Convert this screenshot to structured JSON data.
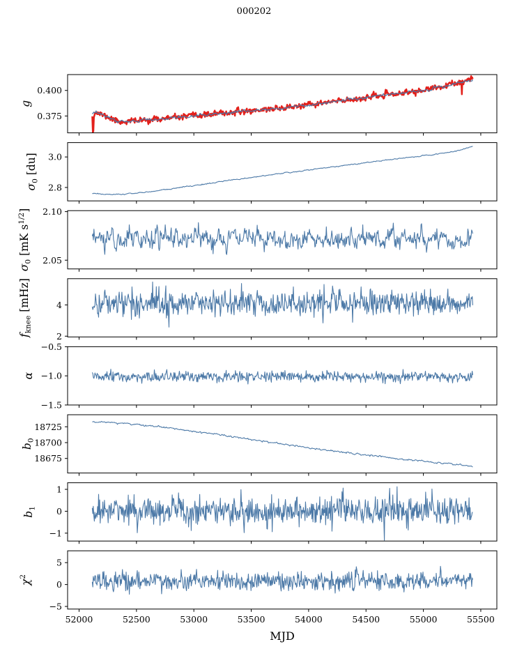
{
  "chart_data": {
    "type": "multi-panel-line",
    "title": "000202",
    "line_color": "#4c79a7",
    "overlay_color": "#e3201b",
    "x_axis": {
      "label": "MJD",
      "lim": [
        51900,
        55640
      ],
      "ticks": [
        52000,
        52500,
        53000,
        53500,
        54000,
        54500,
        55000,
        55500
      ],
      "tick_labels": [
        "52000",
        "52500",
        "53000",
        "53500",
        "54000",
        "54500",
        "55000",
        "55500"
      ]
    },
    "panels": [
      {
        "id": "g",
        "type": "line",
        "ylabel_text": "g",
        "ylabel_segments": [
          {
            "t": "g",
            "it": 1
          }
        ],
        "ylim": [
          0.3585,
          0.4155
        ],
        "yticks": [
          {
            "v": 0.4,
            "l": "0.400"
          },
          {
            "v": 0.375,
            "l": "0.375"
          }
        ],
        "series": [
          {
            "name": "gain-data-red",
            "color": "#e3201b",
            "width": 2.4,
            "n": 700,
            "x_range": [
              52115,
              55430
            ],
            "control": {
              "x": [
                52115,
                52150,
                52350,
                52700,
                53100,
                53500,
                53900,
                54300,
                54700,
                55000,
                55250,
                55430
              ],
              "v": [
                0.3762,
                0.3786,
                0.3692,
                0.372,
                0.3761,
                0.3802,
                0.3843,
                0.3902,
                0.3958,
                0.4,
                0.4058,
                0.4108
              ]
            },
            "noise_sd": 0.0014,
            "ar": 0.25,
            "seed": 11,
            "spikes": [
              {
                "x": 52119,
                "v": 0.3592
              },
              {
                "x": 52123,
                "v": 0.36
              },
              {
                "x": 55333,
                "v": 0.3962
              }
            ]
          },
          {
            "name": "gain-smoothed-blue",
            "color": "#4c79a7",
            "width": 1.2,
            "n": 500,
            "x_range": [
              52115,
              55430
            ],
            "control": {
              "x": [
                52115,
                52150,
                52350,
                52700,
                53100,
                53500,
                53900,
                54300,
                54700,
                55000,
                55250,
                55430
              ],
              "v": [
                0.3762,
                0.3786,
                0.3692,
                0.372,
                0.3761,
                0.3802,
                0.3843,
                0.3902,
                0.3958,
                0.4,
                0.4058,
                0.4108
              ]
            },
            "noise_sd": 0.0007,
            "ar": 0.5,
            "seed": 12
          }
        ]
      },
      {
        "id": "sigma0-du",
        "type": "line",
        "ylabel_text": "sigma_0 [du]",
        "ylabel_segments": [
          {
            "t": "σ",
            "it": 1
          },
          {
            "t": "0",
            "s": "sub"
          },
          {
            "t": " [du]"
          }
        ],
        "ylim": [
          2.712,
          3.094
        ],
        "yticks": [
          {
            "v": 3.0,
            "l": "3.0"
          },
          {
            "v": 2.8,
            "l": "2.8"
          }
        ],
        "series": [
          {
            "name": "sigma0-du-line",
            "color": "#4c79a7",
            "width": 1.1,
            "n": 500,
            "x_range": [
              52115,
              55430
            ],
            "control": {
              "x": [
                52115,
                52300,
                52600,
                53000,
                53400,
                53800,
                54200,
                54600,
                55000,
                55250,
                55430
              ],
              "v": [
                2.763,
                2.751,
                2.77,
                2.812,
                2.856,
                2.896,
                2.934,
                2.972,
                3.008,
                3.032,
                3.068
              ]
            },
            "noise_sd": 0.002,
            "ar": 0.5,
            "seed": 21
          }
        ]
      },
      {
        "id": "sigma0-mks",
        "type": "line",
        "ylabel_text": "sigma_0 [mK s^1/2]",
        "ylabel_segments": [
          {
            "t": "σ",
            "it": 1
          },
          {
            "t": "0",
            "s": "sub"
          },
          {
            "t": " [mK s"
          },
          {
            "t": "1/2",
            "s": "sup"
          },
          {
            "t": "]"
          }
        ],
        "ylim": [
          2.041,
          2.101
        ],
        "yticks": [
          {
            "v": 2.1,
            "l": "2.10"
          },
          {
            "v": 2.05,
            "l": "2.05"
          }
        ],
        "series": [
          {
            "name": "sigma0-mks-line",
            "color": "#4c79a7",
            "width": 1.1,
            "n": 700,
            "x_range": [
              52115,
              55430
            ],
            "mean": 2.0725,
            "noise_sd": 0.0055,
            "ar": 0.45,
            "clamp": [
              2.052,
              2.0965
            ],
            "seed": 31
          }
        ]
      },
      {
        "id": "fknee",
        "type": "line",
        "ylabel_text": "f_knee [mHz]",
        "ylabel_segments": [
          {
            "t": "f",
            "it": 1
          },
          {
            "t": "knee",
            "s": "sub"
          },
          {
            "t": " [mHz]"
          }
        ],
        "ylim": [
          1.95,
          5.68
        ],
        "yticks": [
          {
            "v": 4,
            "l": "4"
          },
          {
            "v": 2,
            "l": "2"
          }
        ],
        "series": [
          {
            "name": "fknee-line",
            "color": "#4c79a7",
            "width": 1.1,
            "n": 720,
            "x_range": [
              52115,
              55430
            ],
            "mean": 4.13,
            "noise_sd": 0.43,
            "ar": 0.15,
            "clamp": [
              2.45,
              5.62
            ],
            "seed": 41
          }
        ]
      },
      {
        "id": "alpha",
        "type": "line",
        "ylabel_text": "alpha",
        "ylabel_segments": [
          {
            "t": "α",
            "it": 1
          }
        ],
        "ylim": [
          -1.5,
          -0.5
        ],
        "yticks": [
          {
            "v": -0.5,
            "l": "−0.5"
          },
          {
            "v": -1.0,
            "l": "−1.0"
          },
          {
            "v": -1.5,
            "l": "−1.5"
          }
        ],
        "series": [
          {
            "name": "alpha-line",
            "color": "#4c79a7",
            "width": 1.1,
            "n": 700,
            "x_range": [
              52115,
              55430
            ],
            "mean": -1.02,
            "noise_sd": 0.045,
            "ar": 0.1,
            "clamp": [
              -1.21,
              -0.8
            ],
            "seed": 51
          }
        ]
      },
      {
        "id": "b0",
        "type": "line",
        "ylabel_text": "b_0",
        "ylabel_segments": [
          {
            "t": "b",
            "it": 1
          },
          {
            "t": "0",
            "s": "sub"
          }
        ],
        "ylim": [
          18652,
          18744
        ],
        "yticks": [
          {
            "v": 18725,
            "l": "18725"
          },
          {
            "v": 18700,
            "l": "18700"
          },
          {
            "v": 18675,
            "l": "18675"
          }
        ],
        "series": [
          {
            "name": "b0-line",
            "color": "#4c79a7",
            "width": 1.1,
            "n": 500,
            "x_range": [
              52115,
              55430
            ],
            "control": {
              "x": [
                52115,
                52400,
                52800,
                53200,
                53600,
                54000,
                54400,
                54800,
                55100,
                55300,
                55430
              ],
              "v": [
                18733,
                18730.5,
                18723,
                18713,
                18702,
                18691.5,
                18682.5,
                18674.5,
                18668.5,
                18665,
                18662.5
              ]
            },
            "noise_sd": 0.7,
            "ar": 0.4,
            "seed": 61
          }
        ]
      },
      {
        "id": "b1",
        "type": "line",
        "ylabel_text": "b_1",
        "ylabel_segments": [
          {
            "t": "b",
            "it": 1
          },
          {
            "t": "1",
            "s": "sub"
          }
        ],
        "ylim": [
          -1.36,
          1.3
        ],
        "yticks": [
          {
            "v": 1,
            "l": "1"
          },
          {
            "v": 0,
            "l": "0"
          },
          {
            "v": -1,
            "l": "−1"
          }
        ],
        "series": [
          {
            "name": "b1-line",
            "color": "#4c79a7",
            "width": 1.1,
            "n": 720,
            "x_range": [
              52115,
              55430
            ],
            "mean": 0.02,
            "noise_sd": 0.33,
            "ar": 0.05,
            "clamp": [
              -1.38,
              1.12
            ],
            "seed": 71,
            "spikes": [
              {
                "x": 54660,
                "v": -1.33
              }
            ]
          }
        ]
      },
      {
        "id": "chi2",
        "type": "line",
        "ylabel_text": "chi^2",
        "ylabel_segments": [
          {
            "t": "χ",
            "it": 1
          },
          {
            "t": "2",
            "s": "sup"
          }
        ],
        "ylim": [
          -5.6,
          7.7
        ],
        "yticks": [
          {
            "v": 5,
            "l": "5"
          },
          {
            "v": 0,
            "l": "0"
          },
          {
            "v": -5,
            "l": "−5"
          }
        ],
        "series": [
          {
            "name": "chi2-line",
            "color": "#4c79a7",
            "width": 1.1,
            "n": 720,
            "x_range": [
              52115,
              55430
            ],
            "mean": 0.85,
            "noise_sd": 1.05,
            "ar": 0.1,
            "clamp": [
              -3.6,
              5.2
            ],
            "seed": 81
          }
        ]
      }
    ]
  }
}
